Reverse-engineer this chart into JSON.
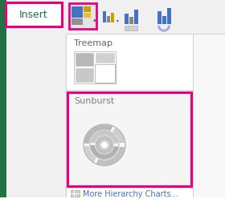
{
  "bg_color": "#ffffff",
  "sidebar_color": "#f0f0f0",
  "ribbon_bg": "#f5f5f5",
  "pink_border": "#e8007e",
  "green_tab": "#217346",
  "insert_text": "Insert",
  "treemap_text": "Treemap",
  "sunburst_text": "Sunburst",
  "more_text": "More Hierarchy Charts...",
  "tab_bg": "#ffffff",
  "dropdown_bg": "#ffffff",
  "ribbon_bar_bg": "#e8e8e8",
  "separator_color": "#d8d8d8",
  "blue1": "#4472c4",
  "gold1": "#c8a000",
  "gray1": "#909090",
  "gray2": "#b0b0b0",
  "gray3": "#c8c8c8",
  "gray4": "#d8d8d8",
  "gray5": "#e8e8e8",
  "text_gray": "#666666",
  "text_blue": "#4472c4",
  "sunburst_label_gray": "#808080",
  "white": "#ffffff"
}
